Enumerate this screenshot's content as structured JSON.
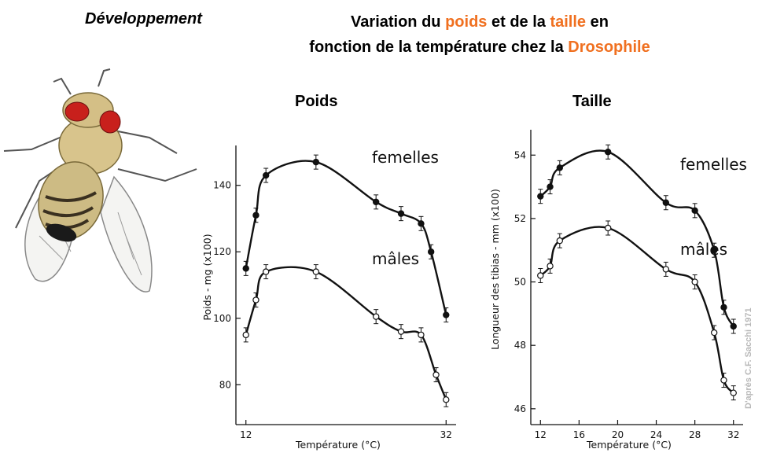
{
  "header": {
    "section_label": "Développement",
    "title_parts": [
      "Variation du ",
      "poids",
      " et de la ",
      "taille",
      " en",
      "fonction de la température chez la ",
      "Drosophile"
    ]
  },
  "accent_color": "#f07020",
  "image": {
    "subject": "drosophila-fly-illustration"
  },
  "credit": "D'après C.F. Sacchi 1971",
  "chart_data": [
    {
      "type": "line",
      "title": "Poids",
      "xlabel": "Température (°C)",
      "ylabel": "Poids - mg (x100)",
      "x_ticks": [
        12,
        32
      ],
      "y_ticks": [
        80,
        100,
        120,
        140
      ],
      "xlim": [
        11,
        33
      ],
      "ylim": [
        68,
        152
      ],
      "series": [
        {
          "name": "femelles",
          "marker": "filled",
          "x": [
            12,
            13,
            14,
            19,
            25,
            27.5,
            29.5,
            30.5,
            32
          ],
          "y": [
            115,
            131,
            143,
            147,
            135,
            131.5,
            128.5,
            120,
            101
          ]
        },
        {
          "name": "mâles",
          "marker": "open",
          "x": [
            12,
            13,
            14,
            19,
            25,
            27.5,
            29.5,
            31,
            32
          ],
          "y": [
            95,
            105.5,
            114,
            114,
            100.5,
            96,
            95,
            83,
            75.5
          ]
        }
      ]
    },
    {
      "type": "line",
      "title": "Taille",
      "xlabel": "Température (°C)",
      "ylabel": "Longueur des tibias - mm (x100)",
      "x_ticks": [
        12,
        16,
        20,
        24,
        28,
        32
      ],
      "y_ticks": [
        46,
        48,
        50,
        52,
        54
      ],
      "xlim": [
        11,
        33
      ],
      "ylim": [
        45.5,
        54.8
      ],
      "series": [
        {
          "name": "femelles",
          "marker": "filled",
          "x": [
            12,
            13,
            14,
            19,
            25,
            28,
            30,
            31,
            32
          ],
          "y": [
            52.7,
            53,
            53.6,
            54.1,
            52.5,
            52.25,
            51,
            49.2,
            48.6
          ]
        },
        {
          "name": "mâles",
          "marker": "open",
          "x": [
            12,
            13,
            14,
            19,
            25,
            28,
            30,
            31,
            32
          ],
          "y": [
            50.2,
            50.5,
            51.3,
            51.7,
            50.4,
            50,
            48.4,
            46.9,
            46.5
          ]
        }
      ]
    }
  ]
}
